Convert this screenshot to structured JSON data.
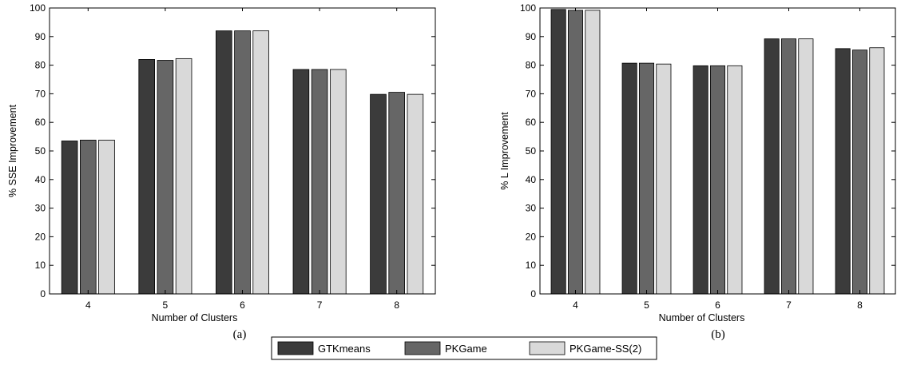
{
  "colors": {
    "GTKmeans": "#3b3b3b",
    "PKGame": "#666666",
    "PKGame-SS(2)": "#d9d9d9",
    "bar_edge": "#000000",
    "axis": "#000000"
  },
  "legend": {
    "placement": "bottom-center",
    "entries": [
      "GTKmeans",
      "PKGame",
      "PKGame-SS(2)"
    ]
  },
  "chart_data": [
    {
      "type": "bar",
      "caption": "(a)",
      "xlabel": "Number of Clusters",
      "ylabel": "% SSE  Improvement",
      "categories": [
        "4",
        "5",
        "6",
        "7",
        "8"
      ],
      "ylim": [
        0,
        100
      ],
      "yticks": [
        0,
        10,
        20,
        30,
        40,
        50,
        60,
        70,
        80,
        90,
        100
      ],
      "grid": false,
      "series": [
        {
          "name": "GTKmeans",
          "values": [
            53.5,
            82,
            92,
            78.5,
            69.8
          ]
        },
        {
          "name": "PKGame",
          "values": [
            53.8,
            81.7,
            92,
            78.5,
            70.5
          ]
        },
        {
          "name": "PKGame-SS(2)",
          "values": [
            53.8,
            82.3,
            92,
            78.5,
            69.8
          ]
        }
      ]
    },
    {
      "type": "bar",
      "caption": "(b)",
      "xlabel": "Number of Clusters",
      "ylabel": "% L Improvement",
      "categories": [
        "4",
        "5",
        "6",
        "7",
        "8"
      ],
      "ylim": [
        0,
        100
      ],
      "yticks": [
        0,
        10,
        20,
        30,
        40,
        50,
        60,
        70,
        80,
        90,
        100
      ],
      "grid": false,
      "series": [
        {
          "name": "GTKmeans",
          "values": [
            99.5,
            80.7,
            79.8,
            89.2,
            85.8
          ]
        },
        {
          "name": "PKGame",
          "values": [
            99.2,
            80.7,
            79.8,
            89.2,
            85.3
          ]
        },
        {
          "name": "PKGame-SS(2)",
          "values": [
            99.2,
            80.4,
            79.8,
            89.2,
            86.1
          ]
        }
      ]
    }
  ]
}
